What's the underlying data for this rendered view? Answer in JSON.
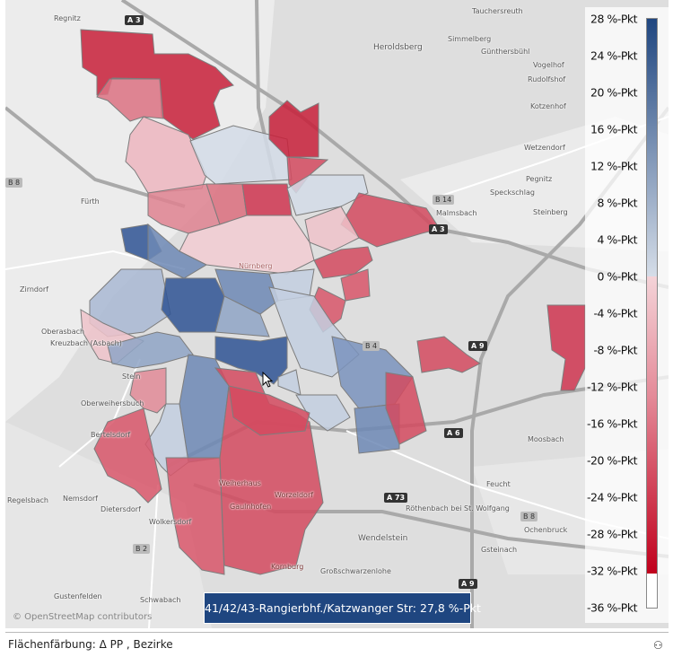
{
  "legend": {
    "ticks": [
      "28 %-Pkt",
      "24 %-Pkt",
      "20 %-Pkt",
      "16 %-Pkt",
      "12 %-Pkt",
      "8 %-Pkt",
      "4 %-Pkt",
      "0 %-Pkt",
      "-4 %-Pkt",
      "-8 %-Pkt",
      "-12 %-Pkt",
      "-16 %-Pkt",
      "-20 %-Pkt",
      "-24 %-Pkt",
      "-28 %-Pkt",
      "-32 %-Pkt",
      "-36 %-Pkt"
    ],
    "range": [
      -36,
      28
    ],
    "data_min": -32.3,
    "colors": {
      "max": "#1f4680",
      "zero_pos": "#d5dde8",
      "zero_neg": "#f4d3d8",
      "min": "#c0001c"
    }
  },
  "tooltip": {
    "text": "41/42/43-Rangierbhf./Katzwanger Str: 27,8 %-Pkt",
    "color": "#1f4680"
  },
  "map": {
    "attribution": "© OpenStreetMap contributors",
    "places": [
      "Regnitz",
      "Fürth",
      "Zirndorf",
      "Nürnberg",
      "Tauchersreuth",
      "Simmelberg",
      "Heroldsberg",
      "Günthersbühl",
      "Vogelhof",
      "Rudolfshof",
      "Kotzenhof",
      "Wetzendorf",
      "Pegnitz",
      "Speckschlag",
      "Steinberg",
      "Malmsbach",
      "Oberasbach",
      "Kreuzbach (Asbach)",
      "Stein",
      "Oberweihersbuch",
      "Bertelsdorf",
      "Regelsbach",
      "Nemsdorf",
      "Dietersdorf",
      "Wolkersdorf",
      "Gustenfelden",
      "Schwabach",
      "Weiherhaus",
      "Gaulnhofen",
      "Worzeldorf",
      "Kornburg",
      "Feucht",
      "Röthenbach bei St. Wolfgang",
      "Wendelstein",
      "Gsteinach",
      "Großschwarzenlohe",
      "Ochenbruck",
      "Moosbach"
    ],
    "road_shields": [
      "A 3",
      "B 8",
      "B 14",
      "A 3",
      "A 9",
      "B 4",
      "A 6",
      "A 73",
      "B 8",
      "B 2",
      "A 9"
    ]
  },
  "footer": {
    "text": "Flächenfärbung: Δ PP , Bezirke",
    "icon": "person-tag-icon"
  }
}
